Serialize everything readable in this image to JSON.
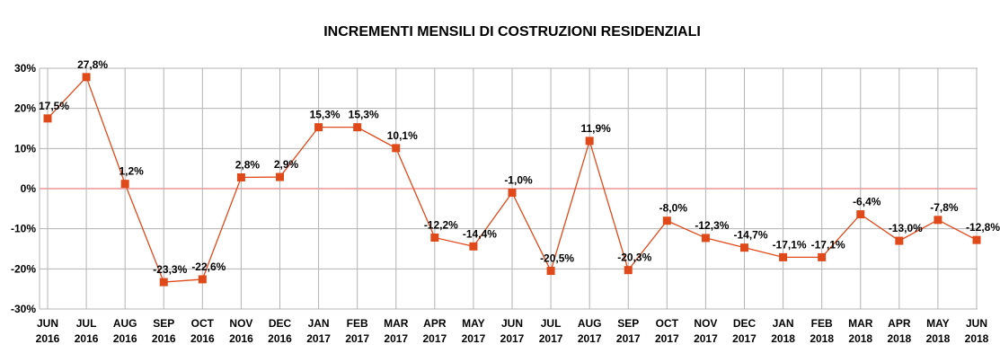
{
  "chart_data": {
    "type": "line",
    "title": "INCREMENTI MENSILI DI COSTRUZIONI RESIDENZIALI",
    "xlabel": "",
    "ylabel": "",
    "ylim": [
      -30,
      30
    ],
    "yticks": [
      30,
      20,
      10,
      0,
      -10,
      -20,
      -30
    ],
    "ytick_labels": [
      "30%",
      "20%",
      "10%",
      "0%",
      "-10%",
      "-20%",
      "-30%"
    ],
    "grid": true,
    "legend": "none",
    "colors": {
      "line": "#e0491a",
      "marker": "#e0491a",
      "zero_line": "#e06060",
      "grid": "#b3b3b3"
    },
    "categories": [
      [
        "JUN",
        "2016"
      ],
      [
        "JUL",
        "2016"
      ],
      [
        "AUG",
        "2016"
      ],
      [
        "SEP",
        "2016"
      ],
      [
        "OCT",
        "2016"
      ],
      [
        "NOV",
        "2016"
      ],
      [
        "DEC",
        "2016"
      ],
      [
        "JAN",
        "2017"
      ],
      [
        "FEB",
        "2017"
      ],
      [
        "MAR",
        "2017"
      ],
      [
        "APR",
        "2017"
      ],
      [
        "MAY",
        "2017"
      ],
      [
        "JUN",
        "2017"
      ],
      [
        "JUL",
        "2017"
      ],
      [
        "AUG",
        "2017"
      ],
      [
        "SEP",
        "2017"
      ],
      [
        "OCT",
        "2017"
      ],
      [
        "NOV",
        "2017"
      ],
      [
        "DEC",
        "2017"
      ],
      [
        "JAN",
        "2018"
      ],
      [
        "FEB",
        "2018"
      ],
      [
        "MAR",
        "2018"
      ],
      [
        "APR",
        "2018"
      ],
      [
        "MAY",
        "2018"
      ],
      [
        "JUN",
        "2018"
      ]
    ],
    "values": [
      17.5,
      27.8,
      1.2,
      -23.3,
      -22.6,
      2.8,
      2.9,
      15.3,
      15.3,
      10.1,
      -12.2,
      -14.4,
      -1.0,
      -20.5,
      11.9,
      -20.3,
      -8.0,
      -12.3,
      -14.7,
      -17.1,
      -17.1,
      -6.4,
      -13.0,
      -7.8,
      -12.8
    ],
    "data_labels": [
      "17,5%",
      "27,8%",
      "1,2%",
      "-23,3%",
      "-22,6%",
      "2,8%",
      "2,9%",
      "15,3%",
      "15,3%",
      "10,1%",
      "-12,2%",
      "-14,4%",
      "-1,0%",
      "-20,5%",
      "11,9%",
      "-20,3%",
      "-8,0%",
      "-12,3%",
      "-14,7%",
      "-17,1%",
      "-17,1%",
      "-6,4%",
      "-13,0%",
      "-7,8%",
      "-12,8%"
    ]
  }
}
